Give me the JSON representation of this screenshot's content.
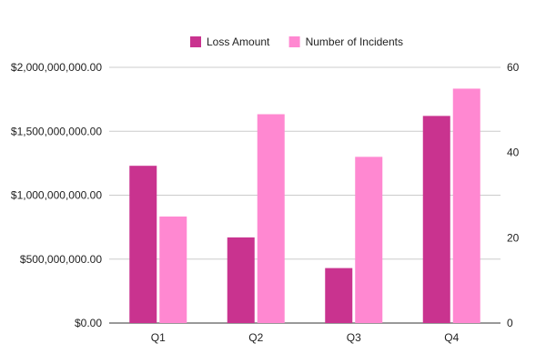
{
  "chart_data": {
    "type": "bar",
    "categories": [
      "Q1",
      "Q2",
      "Q3",
      "Q4"
    ],
    "series": [
      {
        "name": "Loss Amount",
        "axis": "left",
        "color": "#c9338f",
        "values": [
          1230000000,
          670000000,
          430000000,
          1620000000
        ]
      },
      {
        "name": "Number of Incidents",
        "axis": "right",
        "color": "#ff88d1",
        "values": [
          25,
          49,
          39,
          55
        ]
      }
    ],
    "y_left": {
      "lim": [
        0,
        2000000000
      ],
      "ticks": [
        0,
        500000000,
        1000000000,
        1500000000,
        2000000000
      ],
      "tick_labels": [
        "$0.00",
        "$500,000,000.00",
        "$1,000,000,000.00",
        "$1,500,000,000.00",
        "$2,000,000,000.00"
      ]
    },
    "y_right": {
      "lim": [
        0,
        60
      ],
      "ticks": [
        0,
        20,
        40,
        60
      ],
      "tick_labels": [
        "0",
        "20",
        "40",
        "60"
      ]
    },
    "grid": true,
    "legend_position": "top-center",
    "title": "",
    "xlabel": "",
    "ylabel": ""
  }
}
